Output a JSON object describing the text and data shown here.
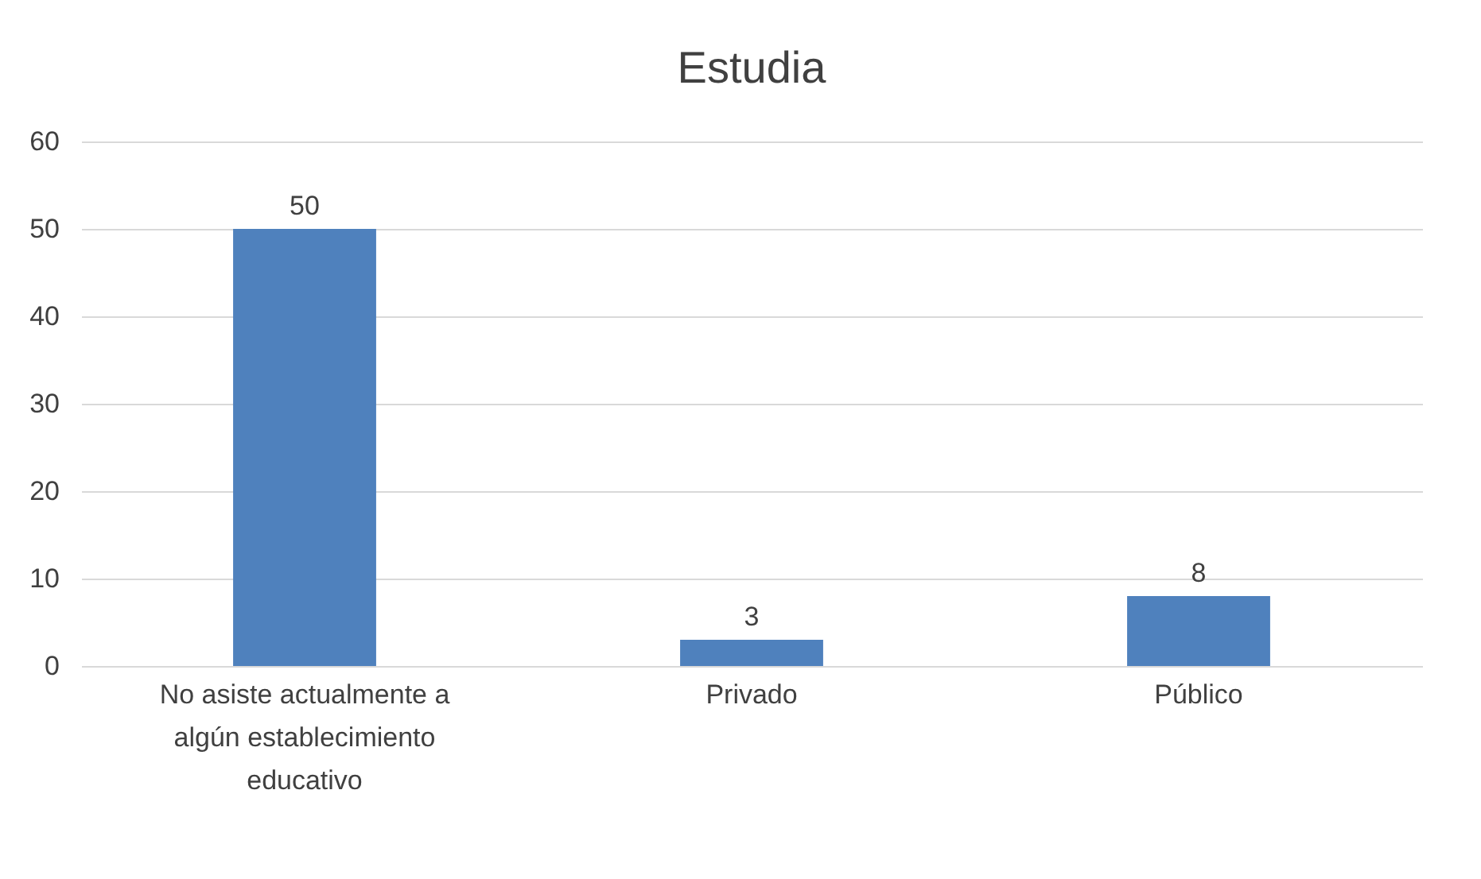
{
  "chart_data": {
    "type": "bar",
    "title": "Estudia",
    "categories": [
      "No asiste actualmente a algún establecimiento educativo",
      "Privado",
      "Público"
    ],
    "values": [
      50,
      3,
      8
    ],
    "color": "#4f81bd",
    "ylim": [
      0,
      60
    ],
    "yticks": [
      0,
      10,
      20,
      30,
      40,
      50,
      60
    ],
    "grid": "y",
    "data_labels": true
  }
}
